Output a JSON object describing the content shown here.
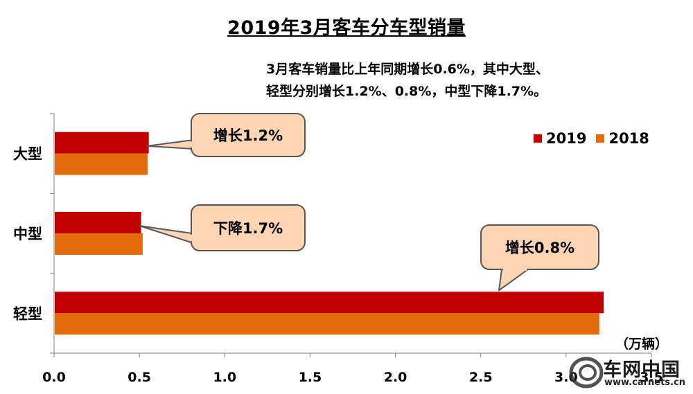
{
  "header": {
    "title": "2019年3月客车分车型销量",
    "subtitle_line1": "3月客车销量比上年同期增长0.6%，其中大型、",
    "subtitle_line2": "轻型分别增长1.2%、0.8%，中型下降1.7%。"
  },
  "unit_label": "（万辆）",
  "watermark": {
    "brand": "车网中国",
    "url": "www.carnets.cn"
  },
  "chart_data": {
    "type": "bar",
    "orientation": "horizontal",
    "categories": [
      "大型",
      "中型",
      "轻型"
    ],
    "series": [
      {
        "name": "2019",
        "color": "#c00000",
        "values": [
          0.555,
          0.51,
          3.22
        ]
      },
      {
        "name": "2018",
        "color": "#e36c0a",
        "values": [
          0.548,
          0.519,
          3.195
        ]
      }
    ],
    "xlim": [
      0,
      3.5
    ],
    "x_ticks": [
      "0.0",
      "0.5",
      "1.0",
      "1.5",
      "2.0",
      "2.5",
      "3.0",
      "3.5"
    ],
    "grid": false,
    "legend_position": "top-right",
    "callouts": [
      {
        "category": "大型",
        "text": "增长1.2%"
      },
      {
        "category": "中型",
        "text": "下降1.7%"
      },
      {
        "category": "轻型",
        "text": "增长0.8%"
      }
    ]
  }
}
